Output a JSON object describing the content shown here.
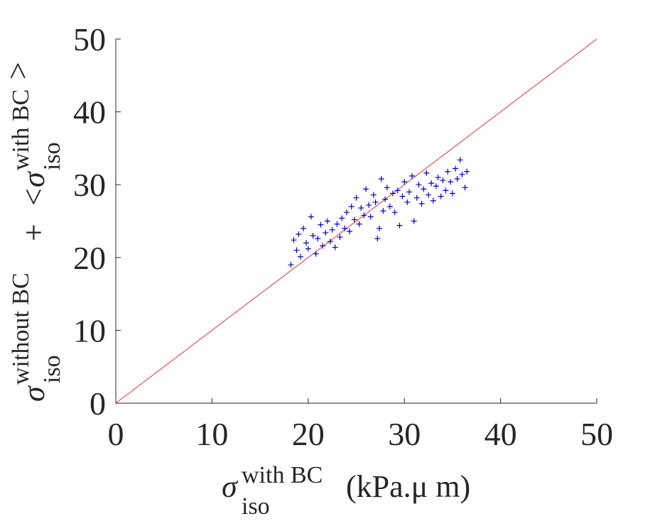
{
  "chart_data": {
    "type": "scatter",
    "title": "",
    "xlim": [
      0,
      50
    ],
    "ylim": [
      0,
      50
    ],
    "x_ticks": [
      "0",
      "10",
      "20",
      "30",
      "40",
      "50"
    ],
    "y_ticks": [
      "0",
      "10",
      "20",
      "30",
      "40",
      "50"
    ],
    "xlabel": {
      "symbol": "σ",
      "superscript": "with BC",
      "subscript": "iso",
      "unit": "(kPa.μ m)"
    },
    "ylabel": {
      "term1_symbol": "σ",
      "term1_superscript": "without BC",
      "term1_subscript": "iso",
      "operator": "+",
      "term2_open": "<",
      "term2_symbol": "σ",
      "term2_superscript": "with BC",
      "term2_subscript": "iso",
      "term2_close": ">"
    },
    "grid": false,
    "legend": "none",
    "series": [
      {
        "marker": "+",
        "color": "#0000cc",
        "points": [
          [
            18.2,
            19.0
          ],
          [
            18.5,
            22.4
          ],
          [
            18.8,
            21.0
          ],
          [
            19.0,
            23.2
          ],
          [
            19.2,
            20.1
          ],
          [
            19.5,
            24.0
          ],
          [
            19.8,
            22.0
          ],
          [
            20.0,
            21.2
          ],
          [
            20.3,
            25.6
          ],
          [
            20.5,
            23.0
          ],
          [
            20.8,
            20.5
          ],
          [
            21.0,
            22.6
          ],
          [
            21.3,
            24.5
          ],
          [
            21.5,
            21.6
          ],
          [
            21.8,
            23.4
          ],
          [
            22.0,
            25.0
          ],
          [
            22.3,
            22.2
          ],
          [
            22.5,
            23.8
          ],
          [
            22.8,
            21.4
          ],
          [
            23.0,
            24.6
          ],
          [
            23.3,
            22.8
          ],
          [
            23.5,
            25.4
          ],
          [
            23.8,
            24.0
          ],
          [
            24.0,
            26.2
          ],
          [
            24.3,
            23.6
          ],
          [
            24.5,
            27.0
          ],
          [
            24.8,
            25.2
          ],
          [
            25.0,
            28.2
          ],
          [
            25.3,
            24.6
          ],
          [
            25.5,
            26.8
          ],
          [
            25.8,
            25.8
          ],
          [
            26.0,
            29.4
          ],
          [
            26.3,
            27.2
          ],
          [
            26.5,
            25.6
          ],
          [
            26.8,
            28.6
          ],
          [
            27.0,
            27.6
          ],
          [
            27.2,
            22.6
          ],
          [
            27.4,
            24.0
          ],
          [
            27.6,
            30.8
          ],
          [
            27.8,
            26.4
          ],
          [
            28.0,
            28.0
          ],
          [
            28.2,
            29.6
          ],
          [
            28.5,
            27.0
          ],
          [
            28.8,
            28.8
          ],
          [
            29.0,
            26.2
          ],
          [
            29.3,
            29.2
          ],
          [
            29.5,
            24.4
          ],
          [
            29.8,
            28.4
          ],
          [
            30.0,
            30.4
          ],
          [
            30.3,
            27.6
          ],
          [
            30.5,
            29.0
          ],
          [
            30.8,
            31.2
          ],
          [
            31.0,
            25.0
          ],
          [
            31.3,
            28.2
          ],
          [
            31.5,
            30.0
          ],
          [
            31.8,
            27.4
          ],
          [
            32.0,
            29.4
          ],
          [
            32.3,
            31.6
          ],
          [
            32.5,
            28.6
          ],
          [
            32.8,
            30.2
          ],
          [
            33.0,
            27.8
          ],
          [
            33.3,
            29.8
          ],
          [
            33.5,
            31.0
          ],
          [
            33.8,
            28.4
          ],
          [
            34.0,
            30.6
          ],
          [
            34.3,
            29.2
          ],
          [
            34.5,
            31.8
          ],
          [
            34.8,
            30.4
          ],
          [
            35.0,
            28.8
          ],
          [
            35.3,
            32.2
          ],
          [
            35.5,
            30.8
          ],
          [
            35.8,
            33.4
          ],
          [
            36.0,
            31.4
          ],
          [
            36.3,
            29.6
          ],
          [
            36.5,
            31.8
          ]
        ]
      }
    ],
    "reference_line": {
      "x": [
        0,
        50
      ],
      "y": [
        0,
        50
      ],
      "color": "#e03030"
    }
  }
}
